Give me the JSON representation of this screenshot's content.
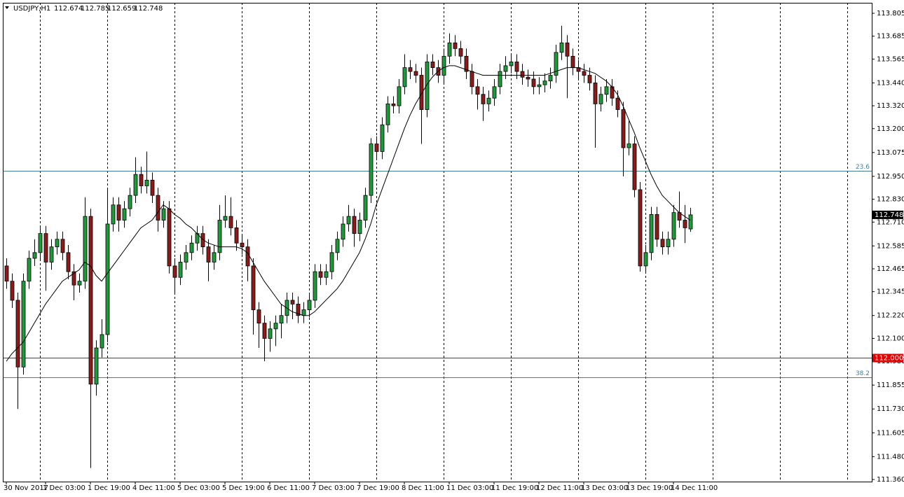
{
  "chart_data": {
    "type": "candlestick",
    "symbol": "USDJPY,H1",
    "ylim": [
      111.349,
      113.86
    ],
    "yticks": [
      113.805,
      113.685,
      113.565,
      {
        "value": 113.44,
        "label": "113.440"
      },
      {
        "value": 113.32,
        "label": "113.320"
      },
      {
        "value": 113.2,
        "label": "113.200"
      },
      113.075,
      {
        "value": 112.95,
        "label": "112.950"
      },
      {
        "value": 112.83,
        "label": "112.830"
      },
      {
        "value": 112.71,
        "label": "112.710"
      },
      112.585,
      112.465,
      112.345,
      {
        "value": 112.22,
        "label": "112.220"
      },
      {
        "value": 112.1,
        "label": "112.100"
      },
      {
        "value": 111.98,
        "label": "111.980"
      },
      111.855,
      {
        "value": 111.73,
        "label": "111.730"
      },
      111.605,
      {
        "value": 111.48,
        "label": "111.480"
      },
      {
        "value": 111.36,
        "label": "111.360"
      }
    ],
    "categories": [
      "30 Nov 2017",
      null,
      null,
      null,
      null,
      null,
      null,
      "1 Dec 03:00",
      null,
      null,
      null,
      null,
      null,
      null,
      null,
      "1 Dec 19:00",
      null,
      null,
      null,
      null,
      null,
      null,
      null,
      "4 Dec 11:00",
      null,
      null,
      null,
      null,
      null,
      null,
      null,
      "5 Dec 03:00",
      null,
      null,
      null,
      null,
      null,
      null,
      null,
      "5 Dec 19:00",
      null,
      null,
      null,
      null,
      null,
      null,
      null,
      "6 Dec 11:00",
      null,
      null,
      null,
      null,
      null,
      null,
      null,
      "7 Dec 03:00",
      null,
      null,
      null,
      null,
      null,
      null,
      null,
      "7 Dec 19:00",
      null,
      null,
      null,
      null,
      null,
      null,
      null,
      "8 Dec 11:00",
      null,
      null,
      null,
      null,
      null,
      null,
      null,
      "11 Dec 03:00",
      null,
      null,
      null,
      null,
      null,
      null,
      null,
      "11 Dec 19:00",
      null,
      null,
      null,
      null,
      null,
      null,
      null,
      "12 Dec 11:00",
      null,
      null,
      null,
      null,
      null,
      null,
      null,
      "13 Dec 03:00",
      null,
      null,
      null,
      null,
      null,
      null,
      null,
      "13 Dec 19:00",
      null,
      null,
      null,
      null,
      null,
      null,
      null,
      "14 Dec 11:00",
      null,
      null,
      null
    ],
    "up_color": "#1f9a3a",
    "down_color": "#8b1a1a",
    "candles": [
      [
        112.48,
        112.52,
        112.36,
        112.4
      ],
      [
        112.4,
        112.44,
        112.26,
        112.3
      ],
      [
        112.3,
        112.34,
        111.73,
        111.95
      ],
      [
        111.95,
        112.44,
        111.91,
        112.4
      ],
      [
        112.4,
        112.56,
        112.36,
        112.52
      ],
      [
        112.52,
        112.62,
        112.48,
        112.55
      ],
      [
        112.55,
        112.69,
        112.51,
        112.65
      ],
      [
        112.65,
        112.69,
        112.35,
        112.5
      ],
      [
        112.5,
        112.62,
        112.46,
        112.58
      ],
      [
        112.58,
        112.66,
        112.54,
        112.62
      ],
      [
        112.62,
        112.66,
        112.51,
        112.55
      ],
      [
        112.55,
        112.59,
        112.41,
        112.45
      ],
      [
        112.45,
        112.49,
        112.3,
        112.38
      ],
      [
        112.38,
        112.44,
        112.34,
        112.4
      ],
      [
        112.4,
        112.84,
        112.36,
        112.74
      ],
      [
        112.74,
        112.78,
        111.42,
        111.86
      ],
      [
        111.86,
        112.09,
        111.8,
        112.05
      ],
      [
        112.05,
        112.2,
        112.0,
        112.12
      ],
      [
        112.12,
        112.88,
        112.08,
        112.7
      ],
      [
        112.7,
        112.84,
        112.66,
        112.8
      ],
      [
        112.8,
        112.84,
        112.66,
        112.72
      ],
      [
        112.72,
        112.82,
        112.68,
        112.78
      ],
      [
        112.78,
        112.89,
        112.74,
        112.85
      ],
      [
        112.85,
        113.05,
        112.81,
        112.96
      ],
      [
        112.96,
        113.0,
        112.86,
        112.9
      ],
      [
        112.9,
        113.08,
        112.86,
        112.93
      ],
      [
        112.93,
        112.97,
        112.81,
        112.85
      ],
      [
        112.85,
        112.89,
        112.66,
        112.72
      ],
      [
        112.72,
        112.82,
        112.68,
        112.78
      ],
      [
        112.78,
        112.82,
        112.44,
        112.48
      ],
      [
        112.48,
        112.52,
        112.34,
        112.42
      ],
      [
        112.42,
        112.54,
        112.38,
        112.5
      ],
      [
        112.5,
        112.59,
        112.46,
        112.55
      ],
      [
        112.55,
        112.64,
        112.51,
        112.6
      ],
      [
        112.6,
        112.69,
        112.56,
        112.65
      ],
      [
        112.65,
        112.69,
        112.54,
        112.58
      ],
      [
        112.58,
        112.62,
        112.4,
        112.5
      ],
      [
        112.5,
        112.59,
        112.46,
        112.55
      ],
      [
        112.55,
        112.8,
        112.51,
        112.72
      ],
      [
        112.72,
        112.85,
        112.68,
        112.74
      ],
      [
        112.74,
        112.84,
        112.64,
        112.68
      ],
      [
        112.68,
        112.72,
        112.56,
        112.6
      ],
      [
        112.6,
        112.64,
        112.54,
        112.58
      ],
      [
        112.58,
        112.62,
        112.4,
        112.48
      ],
      [
        112.48,
        112.52,
        112.12,
        112.25
      ],
      [
        112.25,
        112.29,
        112.05,
        112.18
      ],
      [
        112.18,
        112.22,
        111.98,
        112.1
      ],
      [
        112.1,
        112.19,
        112.03,
        112.15
      ],
      [
        112.15,
        112.22,
        112.06,
        112.18
      ],
      [
        112.18,
        112.28,
        112.1,
        112.22
      ],
      [
        112.22,
        112.34,
        112.18,
        112.3
      ],
      [
        112.3,
        112.34,
        112.2,
        112.28
      ],
      [
        112.28,
        112.32,
        112.18,
        112.22
      ],
      [
        112.22,
        112.29,
        112.18,
        112.25
      ],
      [
        112.25,
        112.34,
        112.21,
        112.3
      ],
      [
        112.3,
        112.49,
        112.26,
        112.45
      ],
      [
        112.45,
        112.49,
        112.38,
        112.42
      ],
      [
        112.42,
        112.49,
        112.38,
        112.45
      ],
      [
        112.45,
        112.59,
        112.41,
        112.55
      ],
      [
        112.55,
        112.66,
        112.51,
        112.62
      ],
      [
        112.62,
        112.74,
        112.58,
        112.7
      ],
      [
        112.7,
        112.8,
        112.66,
        112.74
      ],
      [
        112.74,
        112.78,
        112.58,
        112.65
      ],
      [
        112.65,
        112.76,
        112.61,
        112.72
      ],
      [
        112.72,
        112.89,
        112.68,
        112.85
      ],
      [
        112.85,
        113.15,
        112.81,
        113.12
      ],
      [
        113.12,
        113.16,
        113.04,
        113.08
      ],
      [
        113.08,
        113.26,
        113.04,
        113.22
      ],
      [
        113.22,
        113.37,
        113.18,
        113.33
      ],
      [
        113.33,
        113.37,
        113.28,
        113.32
      ],
      [
        113.32,
        113.46,
        113.28,
        113.42
      ],
      [
        113.42,
        113.59,
        113.38,
        113.52
      ],
      [
        113.52,
        113.56,
        113.46,
        113.5
      ],
      [
        113.5,
        113.54,
        113.44,
        113.48
      ],
      [
        113.48,
        113.52,
        113.12,
        113.3
      ],
      [
        113.3,
        113.59,
        113.26,
        113.55
      ],
      [
        113.55,
        113.59,
        113.48,
        113.52
      ],
      [
        113.52,
        113.56,
        113.44,
        113.48
      ],
      [
        113.48,
        113.62,
        113.44,
        113.58
      ],
      [
        113.58,
        113.7,
        113.54,
        113.65
      ],
      [
        113.65,
        113.69,
        113.58,
        113.62
      ],
      [
        113.62,
        113.66,
        113.54,
        113.58
      ],
      [
        113.58,
        113.62,
        113.46,
        113.5
      ],
      [
        113.5,
        113.54,
        113.38,
        113.42
      ],
      [
        113.42,
        113.46,
        113.3,
        113.38
      ],
      [
        113.38,
        113.42,
        113.24,
        113.33
      ],
      [
        113.33,
        113.4,
        113.29,
        113.36
      ],
      [
        113.36,
        113.46,
        113.32,
        113.42
      ],
      [
        113.42,
        113.54,
        113.38,
        113.5
      ],
      [
        113.5,
        113.58,
        113.46,
        113.53
      ],
      [
        113.53,
        113.59,
        113.49,
        113.55
      ],
      [
        113.55,
        113.59,
        113.46,
        113.5
      ],
      [
        113.5,
        113.54,
        113.43,
        113.47
      ],
      [
        113.47,
        113.51,
        113.42,
        113.46
      ],
      [
        113.46,
        113.5,
        113.38,
        113.42
      ],
      [
        113.42,
        113.47,
        113.38,
        113.43
      ],
      [
        113.43,
        113.49,
        113.39,
        113.45
      ],
      [
        113.45,
        113.52,
        113.41,
        113.48
      ],
      [
        113.48,
        113.64,
        113.44,
        113.6
      ],
      [
        113.6,
        113.74,
        113.56,
        113.65
      ],
      [
        113.65,
        113.69,
        113.36,
        113.58
      ],
      [
        113.58,
        113.62,
        113.48,
        113.52
      ],
      [
        113.52,
        113.56,
        113.46,
        113.5
      ],
      [
        113.5,
        113.54,
        113.44,
        113.48
      ],
      [
        113.48,
        113.52,
        113.4,
        113.44
      ],
      [
        113.44,
        113.48,
        113.1,
        113.33
      ],
      [
        113.33,
        113.42,
        113.29,
        113.38
      ],
      [
        113.38,
        113.46,
        113.34,
        113.42
      ],
      [
        113.42,
        113.46,
        113.32,
        113.36
      ],
      [
        113.36,
        113.4,
        113.26,
        113.3
      ],
      [
        113.3,
        113.34,
        112.95,
        113.1
      ],
      [
        113.1,
        113.24,
        113.06,
        113.12
      ],
      [
        113.12,
        113.16,
        112.84,
        112.88
      ],
      [
        112.88,
        112.92,
        112.45,
        112.48
      ],
      [
        112.48,
        112.59,
        112.44,
        112.55
      ],
      [
        112.55,
        112.79,
        112.51,
        112.75
      ],
      [
        112.75,
        112.79,
        112.58,
        112.62
      ],
      [
        112.62,
        112.66,
        112.54,
        112.58
      ],
      [
        112.58,
        112.66,
        112.54,
        112.62
      ],
      [
        112.62,
        112.8,
        112.58,
        112.76
      ],
      [
        112.76,
        112.87,
        112.68,
        112.72
      ],
      [
        112.72,
        112.8,
        112.6,
        112.68
      ],
      [
        112.674,
        112.785,
        112.659,
        112.748
      ]
    ],
    "ma": {
      "color": "#000000",
      "values": [
        111.98,
        112.02,
        112.05,
        112.08,
        112.13,
        112.18,
        112.23,
        112.28,
        112.32,
        112.36,
        112.4,
        112.42,
        112.44,
        112.46,
        112.5,
        112.48,
        112.43,
        112.4,
        112.44,
        112.48,
        112.52,
        112.56,
        112.6,
        112.64,
        112.68,
        112.7,
        112.72,
        112.76,
        112.8,
        112.78,
        112.75,
        112.73,
        112.7,
        112.68,
        112.65,
        112.62,
        112.6,
        112.59,
        112.58,
        112.58,
        112.58,
        112.58,
        112.57,
        112.55,
        112.5,
        112.45,
        112.4,
        112.36,
        112.32,
        112.28,
        112.26,
        112.24,
        112.23,
        112.22,
        112.22,
        112.24,
        112.27,
        112.3,
        112.33,
        112.36,
        112.4,
        112.45,
        112.5,
        112.55,
        112.62,
        112.7,
        112.8,
        112.88,
        112.96,
        113.04,
        113.12,
        113.2,
        113.27,
        113.33,
        113.38,
        113.43,
        113.47,
        113.5,
        113.52,
        113.53,
        113.53,
        113.52,
        113.51,
        113.5,
        113.49,
        113.48,
        113.48,
        113.48,
        113.48,
        113.48,
        113.48,
        113.48,
        113.48,
        113.48,
        113.48,
        113.48,
        113.48,
        113.49,
        113.5,
        113.51,
        113.52,
        113.52,
        113.52,
        113.51,
        113.5,
        113.49,
        113.47,
        113.45,
        113.42,
        113.38,
        113.32,
        113.25,
        113.18,
        113.1,
        113.03,
        112.96,
        112.9,
        112.85,
        112.82,
        112.79,
        112.76,
        112.74,
        112.72
      ]
    },
    "levels": [
      {
        "value": 112.978,
        "label": "23.6",
        "color": "#3f7f99"
      },
      {
        "value": 111.897,
        "label": "38.2",
        "color": "#3f7f99"
      },
      {
        "value": 112,
        "label": "112.000",
        "color": "#e00000",
        "tag": true
      }
    ]
  }
}
